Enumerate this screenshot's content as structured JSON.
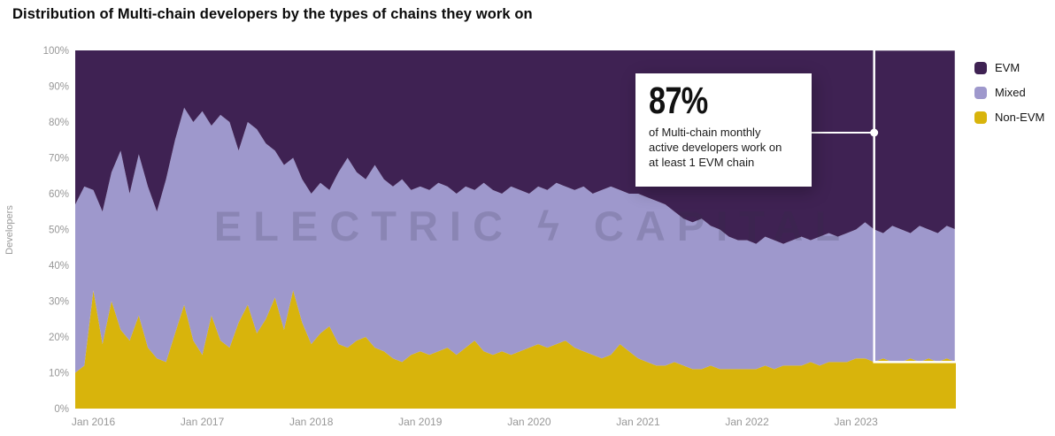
{
  "title": "Distribution of Multi-chain developers by the types of chains they work on",
  "y_axis_title": "Developers",
  "watermark": "ELECTRIC ϟ CAPITAL",
  "annotation": {
    "value": "87%",
    "lines": [
      "of Multi-chain monthly",
      "active developers work on",
      "at least 1 EVM chain"
    ]
  },
  "legend": {
    "items": [
      {
        "label": "EVM",
        "color": "#3f2253"
      },
      {
        "label": "Mixed",
        "color": "#9e98cc"
      },
      {
        "label": "Non-EVM",
        "color": "#d8b40c"
      }
    ]
  },
  "chart_data": {
    "type": "area",
    "stacked": true,
    "unit": "%",
    "ylim": [
      0,
      100
    ],
    "grid": false,
    "legend_position": "right",
    "x_start": "2015-11",
    "x_freq": "monthly",
    "y_ticks": [
      0,
      10,
      20,
      30,
      40,
      50,
      60,
      70,
      80,
      90,
      100
    ],
    "x_ticks": [
      {
        "label": "Jan 2016",
        "index": 2
      },
      {
        "label": "Jan 2017",
        "index": 14
      },
      {
        "label": "Jan 2018",
        "index": 26
      },
      {
        "label": "Jan 2019",
        "index": 38
      },
      {
        "label": "Jan 2020",
        "index": 50
      },
      {
        "label": "Jan 2021",
        "index": 62
      },
      {
        "label": "Jan 2022",
        "index": 74
      },
      {
        "label": "Jan 2023",
        "index": 86
      }
    ],
    "series": [
      {
        "name": "Non-EVM",
        "color": "#d8b40c",
        "values": [
          10,
          12,
          33,
          18,
          30,
          22,
          19,
          26,
          17,
          14,
          13,
          21,
          29,
          19,
          15,
          26,
          19,
          17,
          24,
          29,
          21,
          25,
          31,
          22,
          33,
          24,
          18,
          21,
          23,
          18,
          17,
          19,
          20,
          17,
          16,
          14,
          13,
          15,
          16,
          15,
          16,
          17,
          15,
          17,
          19,
          16,
          15,
          16,
          15,
          16,
          17,
          18,
          17,
          18,
          19,
          17,
          16,
          15,
          14,
          15,
          18,
          16,
          14,
          13,
          12,
          12,
          13,
          12,
          11,
          11,
          12,
          11,
          11,
          11,
          11,
          11,
          12,
          11,
          12,
          12,
          12,
          13,
          12,
          13,
          13,
          13,
          14,
          14,
          13,
          14,
          13,
          13,
          14,
          13,
          14,
          13,
          14,
          13
        ]
      },
      {
        "name": "Mixed",
        "color": "#9e98cc",
        "values": [
          47,
          50,
          28,
          37,
          36,
          50,
          41,
          45,
          45,
          41,
          51,
          54,
          55,
          61,
          68,
          53,
          63,
          63,
          48,
          51,
          57,
          49,
          41,
          46,
          37,
          40,
          42,
          42,
          38,
          48,
          53,
          47,
          44,
          51,
          48,
          48,
          51,
          46,
          46,
          46,
          47,
          45,
          45,
          45,
          42,
          47,
          46,
          44,
          47,
          45,
          43,
          44,
          44,
          45,
          43,
          44,
          46,
          45,
          47,
          47,
          43,
          44,
          46,
          46,
          46,
          45,
          42,
          41,
          41,
          42,
          39,
          39,
          37,
          36,
          36,
          35,
          36,
          36,
          34,
          35,
          36,
          34,
          36,
          36,
          35,
          36,
          36,
          38,
          37,
          35,
          38,
          37,
          35,
          38,
          36,
          36,
          37,
          37
        ]
      },
      {
        "name": "EVM",
        "color": "#3f2253",
        "values": [
          43,
          38,
          39,
          45,
          34,
          28,
          40,
          29,
          38,
          45,
          36,
          25,
          16,
          20,
          17,
          21,
          18,
          20,
          28,
          20,
          22,
          26,
          28,
          32,
          30,
          36,
          40,
          37,
          39,
          34,
          30,
          34,
          36,
          32,
          36,
          38,
          36,
          39,
          38,
          39,
          37,
          38,
          40,
          38,
          39,
          37,
          39,
          40,
          38,
          39,
          40,
          38,
          39,
          37,
          38,
          39,
          38,
          40,
          39,
          38,
          39,
          40,
          40,
          41,
          42,
          43,
          45,
          47,
          48,
          47,
          49,
          50,
          52,
          53,
          53,
          54,
          52,
          53,
          54,
          53,
          52,
          53,
          52,
          51,
          52,
          51,
          50,
          48,
          50,
          51,
          49,
          50,
          51,
          49,
          50,
          51,
          49,
          50
        ]
      }
    ],
    "highlight": {
      "from_index": 88,
      "bottom_pct": 13,
      "top_pct": 100
    }
  }
}
